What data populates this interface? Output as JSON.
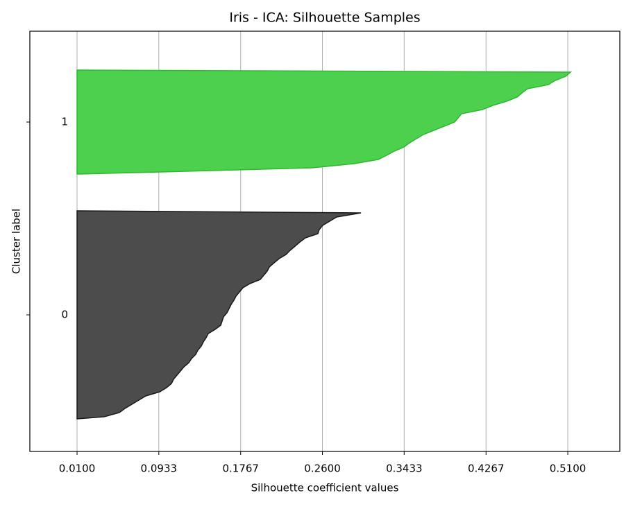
{
  "chart_data": {
    "type": "silhouette",
    "title": "Iris - ICA: Silhouette Samples",
    "x_label": "Silhouette coefficient values",
    "y_label": "Cluster label",
    "xlim": [
      -0.0381,
      0.563
    ],
    "xticks": [
      {
        "value": 0.01,
        "label": "0.0100"
      },
      {
        "value": 0.0933,
        "label": "0.0933"
      },
      {
        "value": 0.1767,
        "label": "0.1767"
      },
      {
        "value": 0.26,
        "label": "0.2600"
      },
      {
        "value": 0.3433,
        "label": "0.3433"
      },
      {
        "value": 0.4267,
        "label": "0.4267"
      },
      {
        "value": 0.51,
        "label": "0.5100"
      }
    ],
    "grid": true,
    "series": [
      {
        "name": "0",
        "color": "#4c4c4c",
        "edge_color": "#1a1a1a",
        "values": [
          0.0376,
          0.0531,
          0.0588,
          0.0659,
          0.0729,
          0.08,
          0.0942,
          0.1012,
          0.1062,
          0.1083,
          0.1118,
          0.1154,
          0.1189,
          0.1239,
          0.1267,
          0.1309,
          0.1331,
          0.1366,
          0.1387,
          0.1415,
          0.1437,
          0.1507,
          0.1564,
          0.1578,
          0.1592,
          0.1628,
          0.1649,
          0.167,
          0.1698,
          0.172,
          0.1755,
          0.179,
          0.1861,
          0.1967,
          0.2002,
          0.2038,
          0.2059,
          0.2108,
          0.2158,
          0.2229,
          0.2271,
          0.2321,
          0.237,
          0.2427,
          0.2554,
          0.2568,
          0.2603,
          0.2674,
          0.2745,
          0.2993
        ]
      },
      {
        "name": "1",
        "color": "#4dd04d",
        "edge_color": "#2db82d",
        "values": [
          0.0942,
          0.2497,
          0.2922,
          0.3169,
          0.3254,
          0.3332,
          0.3431,
          0.3488,
          0.3558,
          0.3629,
          0.3735,
          0.3841,
          0.3947,
          0.3983,
          0.4018,
          0.423,
          0.4336,
          0.4478,
          0.4584,
          0.4633,
          0.469,
          0.4902,
          0.4973,
          0.5079,
          0.5128
        ]
      }
    ]
  }
}
